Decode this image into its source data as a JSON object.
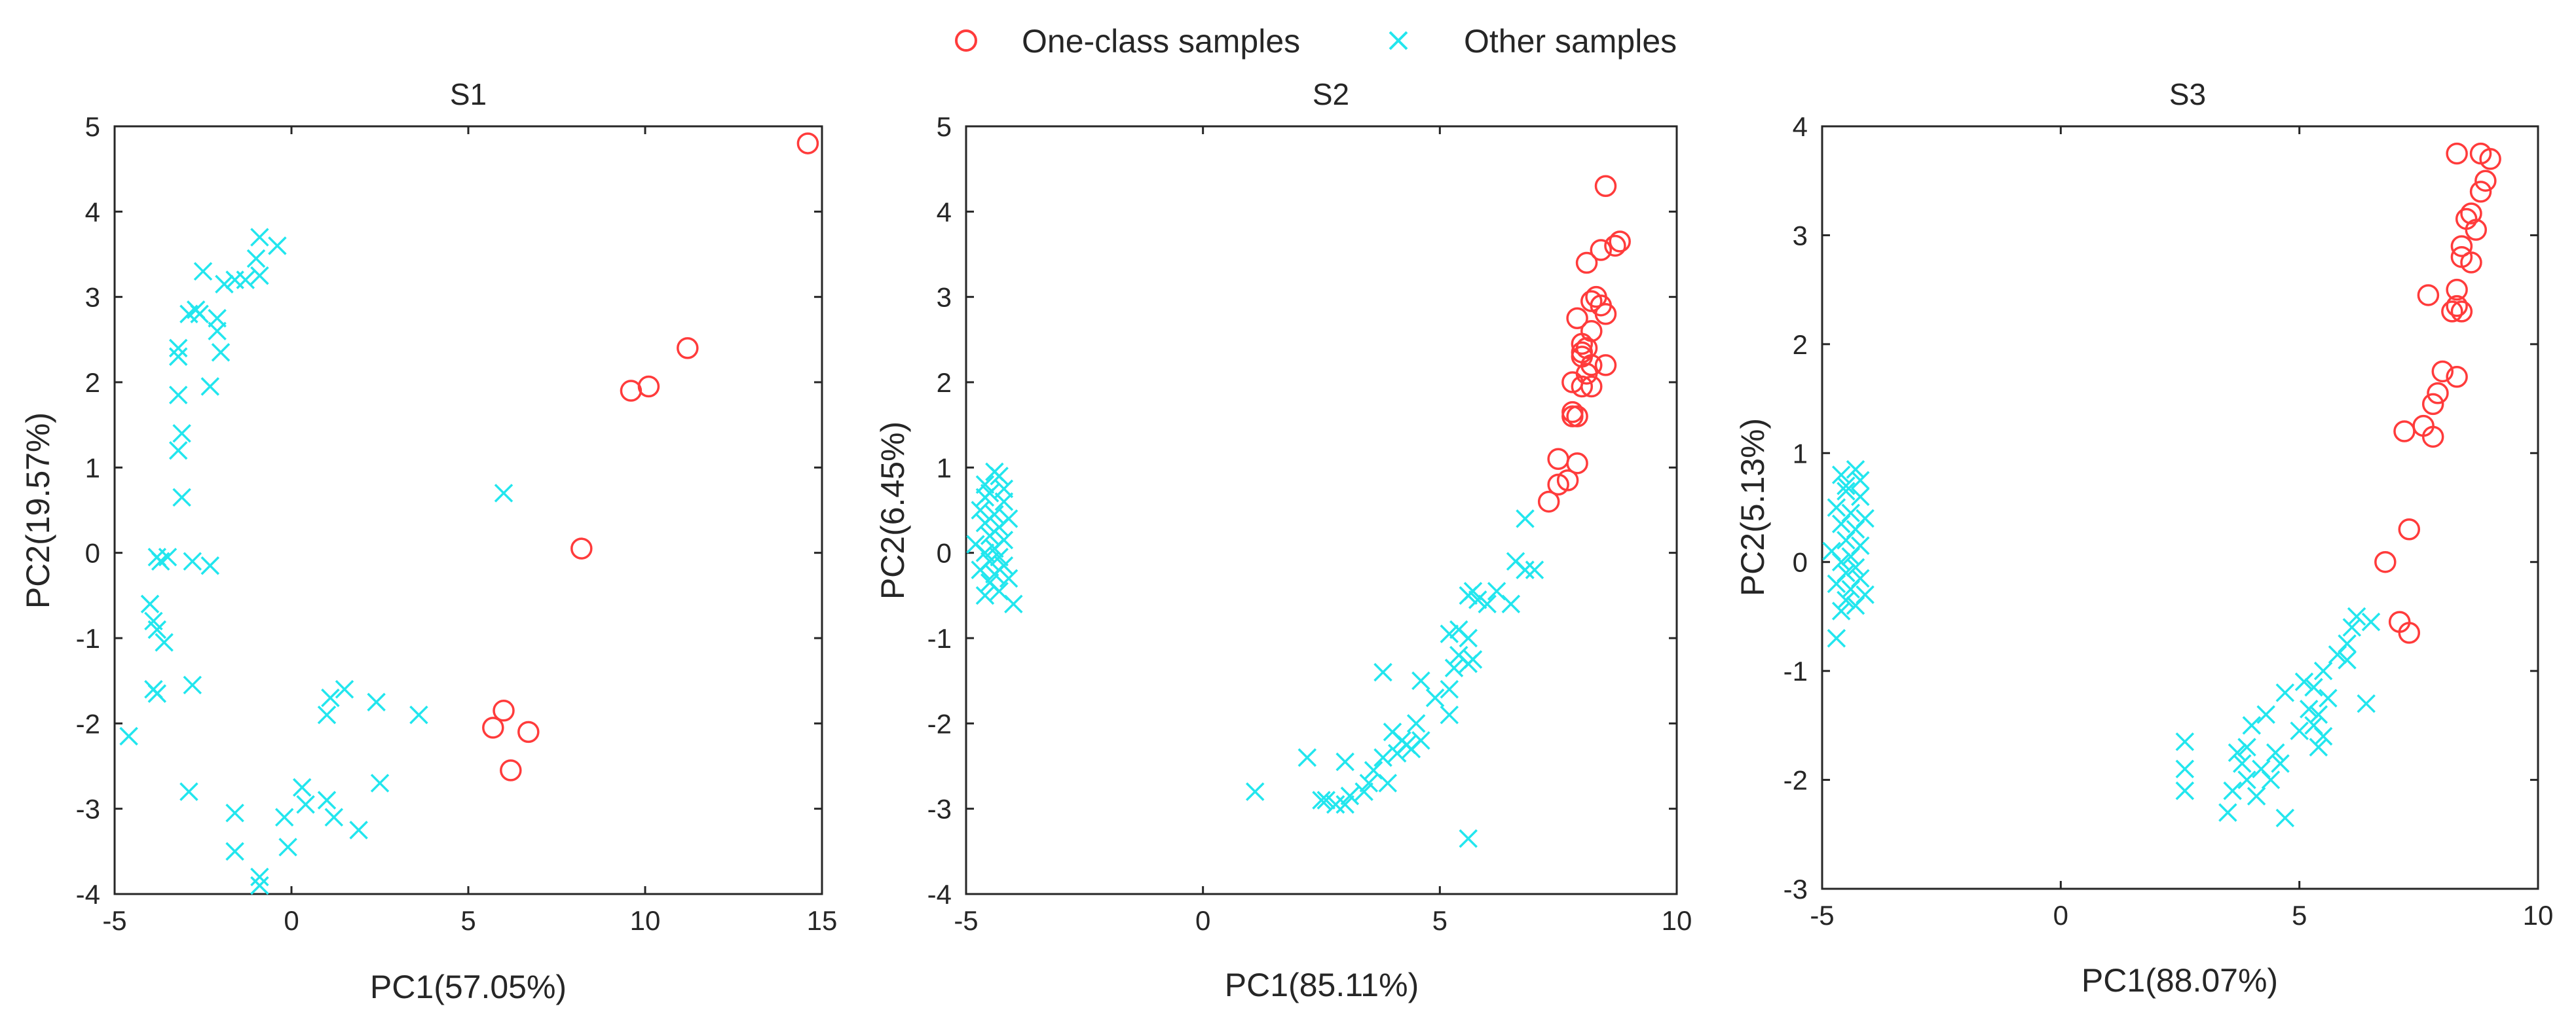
{
  "legend": {
    "position": "top-center",
    "items": [
      {
        "label": "One-class samples",
        "marker": "circle",
        "color": "#ff3b3b"
      },
      {
        "label": "Other samples",
        "marker": "x",
        "color": "#22e6ee"
      }
    ]
  },
  "chart_data": [
    {
      "type": "scatter",
      "title": "S1",
      "xlabel": "PC1(57.05%)",
      "ylabel": "PC2(19.57%)",
      "xlim": [
        -5,
        15
      ],
      "ylim": [
        -4,
        5
      ],
      "xticks": [
        -5,
        0,
        5,
        10,
        15
      ],
      "yticks": [
        -4,
        -3,
        -2,
        -1,
        0,
        1,
        2,
        3,
        4,
        5
      ],
      "grid": false,
      "series": [
        {
          "name": "One-class samples",
          "points": [
            [
              14.6,
              4.8
            ],
            [
              11.2,
              2.4
            ],
            [
              10.1,
              1.95
            ],
            [
              9.6,
              1.9
            ],
            [
              8.2,
              0.05
            ],
            [
              6.0,
              -1.85
            ],
            [
              5.7,
              -2.05
            ],
            [
              6.7,
              -2.1
            ],
            [
              6.2,
              -2.55
            ]
          ]
        },
        {
          "name": "Other samples",
          "points": [
            [
              -0.9,
              3.7
            ],
            [
              -0.4,
              3.6
            ],
            [
              -1.0,
              3.45
            ],
            [
              -0.9,
              3.25
            ],
            [
              -1.3,
              3.2
            ],
            [
              -1.6,
              3.2
            ],
            [
              -2.5,
              3.3
            ],
            [
              -1.9,
              3.15
            ],
            [
              -2.7,
              2.85
            ],
            [
              -2.6,
              2.8
            ],
            [
              -2.9,
              2.8
            ],
            [
              -2.1,
              2.75
            ],
            [
              -2.1,
              2.6
            ],
            [
              -3.2,
              2.4
            ],
            [
              -3.2,
              2.3
            ],
            [
              -2.0,
              2.35
            ],
            [
              -2.3,
              1.95
            ],
            [
              -3.2,
              1.85
            ],
            [
              -3.1,
              1.4
            ],
            [
              -3.2,
              1.2
            ],
            [
              -3.1,
              0.65
            ],
            [
              6.0,
              0.7
            ],
            [
              -3.8,
              -0.05
            ],
            [
              -3.7,
              -0.1
            ],
            [
              -3.5,
              -0.05
            ],
            [
              -2.8,
              -0.1
            ],
            [
              -2.3,
              -0.15
            ],
            [
              -4.0,
              -0.6
            ],
            [
              -3.9,
              -0.8
            ],
            [
              -3.8,
              -0.9
            ],
            [
              -3.6,
              -1.05
            ],
            [
              -3.9,
              -1.6
            ],
            [
              -3.8,
              -1.65
            ],
            [
              -2.8,
              -1.55
            ],
            [
              1.5,
              -1.6
            ],
            [
              1.1,
              -1.7
            ],
            [
              2.4,
              -1.75
            ],
            [
              3.6,
              -1.9
            ],
            [
              1.0,
              -1.9
            ],
            [
              -4.6,
              -2.15
            ],
            [
              2.5,
              -2.7
            ],
            [
              -2.9,
              -2.8
            ],
            [
              0.3,
              -2.75
            ],
            [
              1.0,
              -2.9
            ],
            [
              0.4,
              -2.95
            ],
            [
              -1.6,
              -3.05
            ],
            [
              -0.2,
              -3.1
            ],
            [
              1.2,
              -3.1
            ],
            [
              1.9,
              -3.25
            ],
            [
              -1.6,
              -3.5
            ],
            [
              -0.1,
              -3.45
            ],
            [
              -0.9,
              -3.8
            ],
            [
              -0.9,
              -3.9
            ]
          ]
        }
      ]
    },
    {
      "type": "scatter",
      "title": "S2",
      "xlabel": "PC1(85.11%)",
      "ylabel": "PC2(6.45%)",
      "xlim": [
        -5,
        10
      ],
      "ylim": [
        -4,
        5
      ],
      "xticks": [
        -5,
        0,
        5,
        10
      ],
      "yticks": [
        -4,
        -3,
        -2,
        -1,
        0,
        1,
        2,
        3,
        4,
        5
      ],
      "grid": false,
      "series": [
        {
          "name": "One-class samples",
          "points": [
            [
              8.5,
              4.3
            ],
            [
              8.8,
              3.65
            ],
            [
              8.7,
              3.6
            ],
            [
              8.4,
              3.55
            ],
            [
              8.1,
              3.4
            ],
            [
              8.3,
              3.0
            ],
            [
              8.2,
              2.95
            ],
            [
              8.4,
              2.9
            ],
            [
              8.5,
              2.8
            ],
            [
              7.9,
              2.75
            ],
            [
              8.2,
              2.6
            ],
            [
              8.0,
              2.45
            ],
            [
              8.1,
              2.4
            ],
            [
              8.0,
              2.35
            ],
            [
              8.0,
              2.3
            ],
            [
              8.2,
              2.2
            ],
            [
              8.5,
              2.2
            ],
            [
              8.1,
              2.1
            ],
            [
              7.8,
              2.0
            ],
            [
              8.0,
              1.95
            ],
            [
              8.2,
              1.95
            ],
            [
              7.8,
              1.65
            ],
            [
              7.8,
              1.6
            ],
            [
              7.9,
              1.6
            ],
            [
              7.5,
              1.1
            ],
            [
              7.9,
              1.05
            ],
            [
              7.5,
              0.8
            ],
            [
              7.7,
              0.85
            ],
            [
              7.3,
              0.6
            ]
          ]
        },
        {
          "name": "Other samples",
          "points": [
            [
              -4.6,
              0.8
            ],
            [
              -4.3,
              0.9
            ],
            [
              -4.5,
              0.7
            ],
            [
              -4.2,
              0.6
            ],
            [
              -4.7,
              0.5
            ],
            [
              -4.4,
              0.45
            ],
            [
              -4.1,
              0.4
            ],
            [
              -4.6,
              0.35
            ],
            [
              -4.3,
              0.3
            ],
            [
              -4.5,
              0.2
            ],
            [
              -4.2,
              0.15
            ],
            [
              -4.8,
              0.1
            ],
            [
              -4.4,
              0.05
            ],
            [
              -4.6,
              0.0
            ],
            [
              -4.3,
              -0.05
            ],
            [
              -4.5,
              -0.1
            ],
            [
              -4.2,
              -0.15
            ],
            [
              -4.7,
              -0.2
            ],
            [
              -4.4,
              -0.25
            ],
            [
              -4.1,
              -0.3
            ],
            [
              -4.5,
              -0.35
            ],
            [
              -4.3,
              -0.45
            ],
            [
              -4.6,
              -0.5
            ],
            [
              -4.0,
              -0.6
            ],
            [
              -4.4,
              0.95
            ],
            [
              -4.6,
              0.65
            ],
            [
              -4.2,
              0.75
            ],
            [
              6.8,
              0.4
            ],
            [
              7.0,
              -0.2
            ],
            [
              6.8,
              -0.2
            ],
            [
              6.6,
              -0.1
            ],
            [
              5.7,
              -0.45
            ],
            [
              5.6,
              -0.5
            ],
            [
              6.2,
              -0.45
            ],
            [
              5.8,
              -0.55
            ],
            [
              6.0,
              -0.6
            ],
            [
              6.5,
              -0.6
            ],
            [
              5.4,
              -0.9
            ],
            [
              5.2,
              -0.95
            ],
            [
              5.6,
              -1.0
            ],
            [
              5.4,
              -1.2
            ],
            [
              5.7,
              -1.25
            ],
            [
              5.3,
              -1.35
            ],
            [
              4.6,
              -1.5
            ],
            [
              5.2,
              -1.6
            ],
            [
              5.6,
              -1.3
            ],
            [
              3.8,
              -1.4
            ],
            [
              4.9,
              -1.7
            ],
            [
              5.2,
              -1.9
            ],
            [
              4.0,
              -2.1
            ],
            [
              4.2,
              -2.2
            ],
            [
              4.3,
              -2.25
            ],
            [
              4.4,
              -2.3
            ],
            [
              4.1,
              -2.35
            ],
            [
              4.6,
              -2.2
            ],
            [
              4.5,
              -2.0
            ],
            [
              3.8,
              -2.4
            ],
            [
              3.6,
              -2.55
            ],
            [
              3.9,
              -2.7
            ],
            [
              3.5,
              -2.7
            ],
            [
              2.2,
              -2.4
            ],
            [
              3.0,
              -2.45
            ],
            [
              3.4,
              -2.8
            ],
            [
              3.1,
              -2.85
            ],
            [
              2.6,
              -2.9
            ],
            [
              2.8,
              -2.95
            ],
            [
              3.0,
              -2.95
            ],
            [
              2.5,
              -2.9
            ],
            [
              1.1,
              -2.8
            ],
            [
              5.6,
              -3.35
            ]
          ]
        }
      ]
    },
    {
      "type": "scatter",
      "title": "S3",
      "xlabel": "PC1(88.07%)",
      "ylabel": "PC2(5.13%)",
      "xlim": [
        -5,
        10
      ],
      "ylim": [
        -3,
        4
      ],
      "xticks": [
        -5,
        0,
        5,
        10
      ],
      "yticks": [
        -3,
        -2,
        -1,
        0,
        1,
        2,
        3,
        4
      ],
      "grid": false,
      "series": [
        {
          "name": "One-class samples",
          "points": [
            [
              8.3,
              3.75
            ],
            [
              8.8,
              3.75
            ],
            [
              9.0,
              3.7
            ],
            [
              8.9,
              3.5
            ],
            [
              8.8,
              3.4
            ],
            [
              8.6,
              3.2
            ],
            [
              8.5,
              3.15
            ],
            [
              8.7,
              3.05
            ],
            [
              8.4,
              2.9
            ],
            [
              8.4,
              2.8
            ],
            [
              8.6,
              2.75
            ],
            [
              8.3,
              2.5
            ],
            [
              7.7,
              2.45
            ],
            [
              8.3,
              2.35
            ],
            [
              8.2,
              2.3
            ],
            [
              8.4,
              2.3
            ],
            [
              8.0,
              1.75
            ],
            [
              8.3,
              1.7
            ],
            [
              7.9,
              1.55
            ],
            [
              7.8,
              1.45
            ],
            [
              7.6,
              1.25
            ],
            [
              7.2,
              1.2
            ],
            [
              7.8,
              1.15
            ],
            [
              7.3,
              0.3
            ],
            [
              6.8,
              0.0
            ],
            [
              7.1,
              -0.55
            ],
            [
              7.3,
              -0.65
            ]
          ]
        },
        {
          "name": "Other samples",
          "points": [
            [
              -4.6,
              0.8
            ],
            [
              -4.3,
              0.85
            ],
            [
              -4.5,
              0.7
            ],
            [
              -4.2,
              0.6
            ],
            [
              -4.7,
              0.5
            ],
            [
              -4.4,
              0.45
            ],
            [
              -4.1,
              0.4
            ],
            [
              -4.6,
              0.35
            ],
            [
              -4.3,
              0.3
            ],
            [
              -4.5,
              0.2
            ],
            [
              -4.2,
              0.15
            ],
            [
              -4.8,
              0.1
            ],
            [
              -4.4,
              0.05
            ],
            [
              -4.6,
              0.0
            ],
            [
              -4.3,
              -0.05
            ],
            [
              -4.5,
              -0.1
            ],
            [
              -4.2,
              -0.15
            ],
            [
              -4.7,
              -0.2
            ],
            [
              -4.4,
              -0.25
            ],
            [
              -4.1,
              -0.3
            ],
            [
              -4.5,
              -0.35
            ],
            [
              -4.3,
              -0.4
            ],
            [
              -4.6,
              -0.45
            ],
            [
              -4.7,
              -0.7
            ],
            [
              -4.2,
              0.75
            ],
            [
              -4.5,
              0.65
            ],
            [
              6.2,
              -0.5
            ],
            [
              6.5,
              -0.55
            ],
            [
              6.1,
              -0.6
            ],
            [
              6.0,
              -0.75
            ],
            [
              5.8,
              -0.85
            ],
            [
              6.0,
              -0.9
            ],
            [
              5.5,
              -1.0
            ],
            [
              5.1,
              -1.1
            ],
            [
              5.3,
              -1.15
            ],
            [
              4.7,
              -1.2
            ],
            [
              5.6,
              -1.25
            ],
            [
              6.4,
              -1.3
            ],
            [
              5.2,
              -1.35
            ],
            [
              5.4,
              -1.4
            ],
            [
              5.3,
              -1.5
            ],
            [
              4.3,
              -1.4
            ],
            [
              4.0,
              -1.5
            ],
            [
              5.0,
              -1.55
            ],
            [
              5.5,
              -1.6
            ],
            [
              5.4,
              -1.7
            ],
            [
              3.9,
              -1.7
            ],
            [
              4.5,
              -1.75
            ],
            [
              3.7,
              -1.75
            ],
            [
              3.8,
              -1.85
            ],
            [
              4.6,
              -1.85
            ],
            [
              4.2,
              -1.9
            ],
            [
              3.9,
              -2.0
            ],
            [
              4.4,
              -2.0
            ],
            [
              3.6,
              -2.1
            ],
            [
              4.1,
              -2.15
            ],
            [
              2.6,
              -1.65
            ],
            [
              2.6,
              -1.9
            ],
            [
              2.6,
              -2.1
            ],
            [
              3.5,
              -2.3
            ],
            [
              4.7,
              -2.35
            ]
          ]
        }
      ]
    }
  ]
}
